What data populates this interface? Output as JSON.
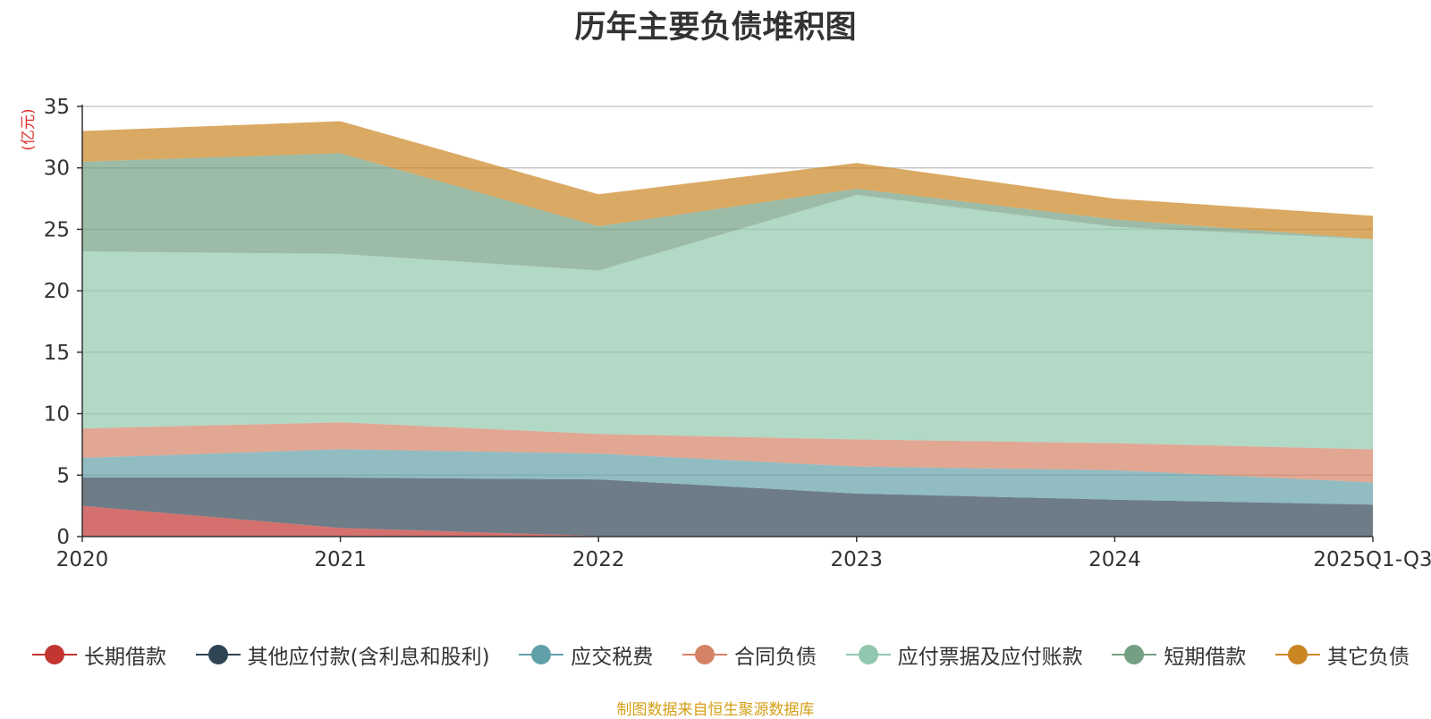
{
  "chart_data": {
    "type": "area",
    "stacked": true,
    "title": "历年主要负债堆积图",
    "ylabel": "(亿元)",
    "xlabel": "",
    "categories": [
      "2020",
      "2021",
      "2022",
      "2023",
      "2024",
      "2025Q1-Q3"
    ],
    "ylim": [
      0,
      35
    ],
    "yticks": [
      0,
      5,
      10,
      15,
      20,
      25,
      30,
      35
    ],
    "grid": true,
    "legend_position": "bottom",
    "series": [
      {
        "name": "长期借款",
        "color": "#c23531",
        "values": [
          2.5,
          0.7,
          0.05,
          0,
          0,
          0
        ]
      },
      {
        "name": "其他应付款(含利息和股利)",
        "color": "#2f4554",
        "values": [
          2.3,
          4.1,
          4.6,
          3.5,
          3.0,
          2.6
        ]
      },
      {
        "name": "应交税费",
        "color": "#61a0a8",
        "values": [
          1.6,
          2.3,
          2.1,
          2.2,
          2.4,
          1.8
        ]
      },
      {
        "name": "合同负债",
        "color": "#d48265",
        "values": [
          2.4,
          2.2,
          1.6,
          2.2,
          2.2,
          2.7
        ]
      },
      {
        "name": "应付票据及应付账款",
        "color": "#91c7ae",
        "values": [
          14.4,
          13.7,
          13.3,
          19.9,
          17.6,
          17.1
        ]
      },
      {
        "name": "短期借款",
        "color": "#749f83",
        "values": [
          7.3,
          8.2,
          3.6,
          0.5,
          0.6,
          0
        ]
      },
      {
        "name": "其它负债",
        "color": "#ca8622",
        "values": [
          2.5,
          2.6,
          2.6,
          2.1,
          1.7,
          1.9
        ]
      }
    ]
  },
  "footer": {
    "source": "制图数据来自恒生聚源数据库"
  }
}
